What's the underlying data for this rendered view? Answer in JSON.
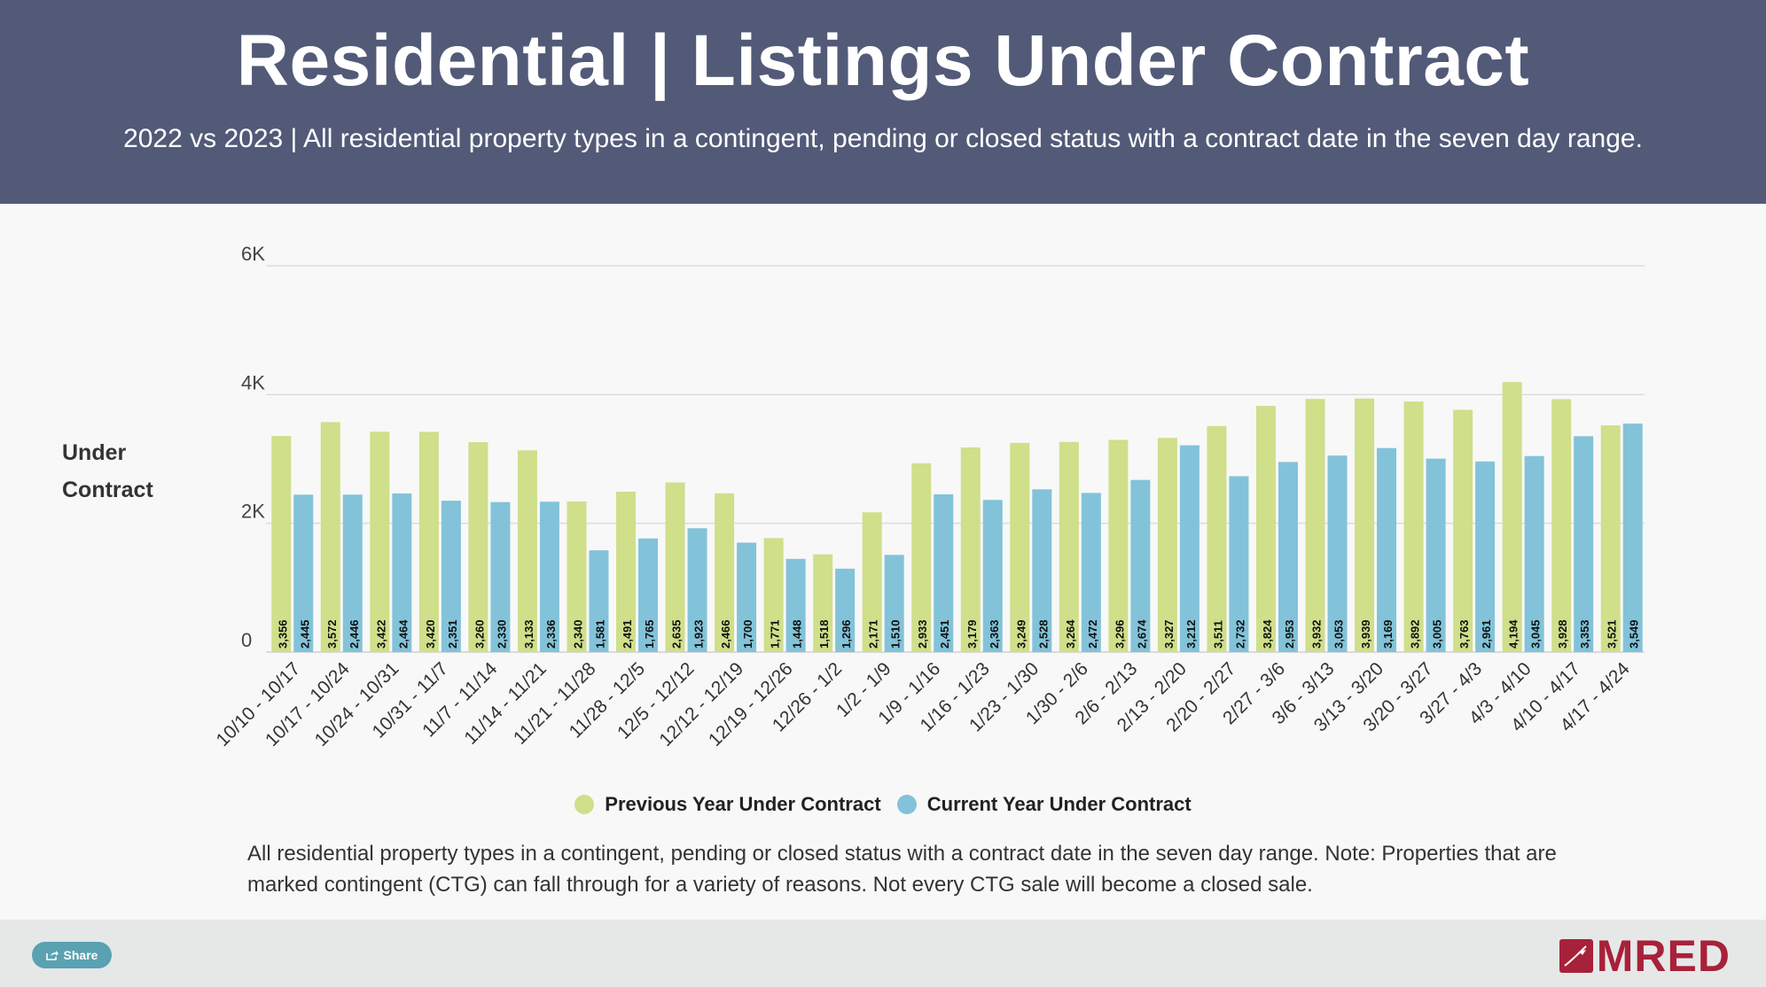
{
  "header": {
    "title": "Residential | Listings Under Contract",
    "subtitle": "2022 vs 2023 | All residential property types in a contingent, pending or closed status with a contract date in the seven day range."
  },
  "colors": {
    "previous": "#cfdf8a",
    "current": "#82c3d9",
    "header_bg": "#525a78",
    "brand": "#a8213a"
  },
  "chart_data": {
    "type": "bar",
    "ylabel": "Under Contract",
    "ylim": [
      0,
      6000
    ],
    "yticks": [
      0,
      2000,
      4000,
      6000
    ],
    "ytick_labels": [
      "0",
      "2K",
      "4K",
      "6K"
    ],
    "grid": true,
    "legend_position": "bottom",
    "categories": [
      "10/10 - 10/17",
      "10/17 - 10/24",
      "10/24 - 10/31",
      "10/31 - 11/7",
      "11/7 - 11/14",
      "11/14 - 11/21",
      "11/21 - 11/28",
      "11/28 - 12/5",
      "12/5 - 12/12",
      "12/12 - 12/19",
      "12/19 - 12/26",
      "12/26 - 1/2",
      "1/2 - 1/9",
      "1/9 - 1/16",
      "1/16 - 1/23",
      "1/23 - 1/30",
      "1/30 - 2/6",
      "2/6 - 2/13",
      "2/13 - 2/20",
      "2/20 - 2/27",
      "2/27 - 3/6",
      "3/6 - 3/13",
      "3/13 - 3/20",
      "3/20 - 3/27",
      "3/27 - 4/3",
      "4/3 - 4/10",
      "4/10 - 4/17",
      "4/17 - 4/24"
    ],
    "series": [
      {
        "name": "Previous Year Under Contract",
        "color": "#cfdf8a",
        "values": [
          3356,
          3572,
          3422,
          3420,
          3260,
          3133,
          2340,
          2491,
          2635,
          2466,
          1771,
          1518,
          2171,
          2933,
          3179,
          3249,
          3264,
          3296,
          3327,
          3511,
          3824,
          3932,
          3939,
          3892,
          3763,
          4194,
          3928,
          3521
        ]
      },
      {
        "name": "Current Year Under Contract",
        "color": "#82c3d9",
        "values": [
          2445,
          2446,
          2464,
          2351,
          2330,
          2336,
          1581,
          1765,
          1923,
          1700,
          1448,
          1296,
          1510,
          2451,
          2363,
          2528,
          2472,
          2674,
          3212,
          2732,
          2953,
          3053,
          3169,
          3005,
          2961,
          3045,
          3353,
          3549
        ]
      }
    ]
  },
  "note": "All residential property types in a contingent, pending or closed status with a contract date in the seven day range. Note: Properties that are marked contingent (CTG) can fall through for a variety of reasons. Not every CTG sale will become a closed sale.",
  "footer": {
    "share_label": "Share",
    "share_icon": "share-icon",
    "logo_text": "MRED"
  }
}
